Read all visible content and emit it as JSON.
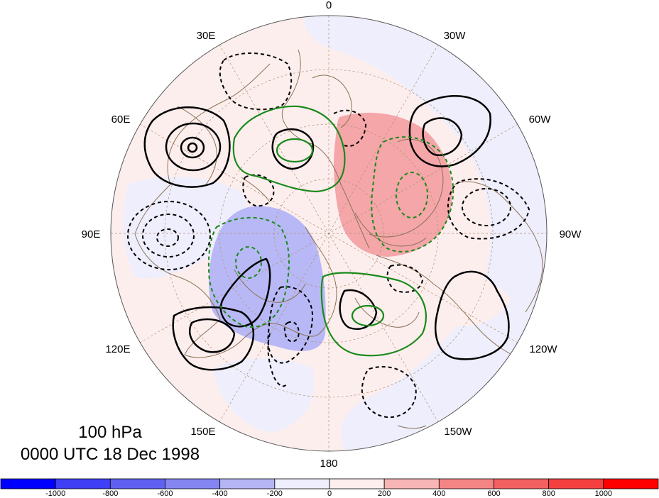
{
  "map": {
    "projection": "north-polar-stereographic",
    "longitude_labels": {
      "top": "0",
      "lon_30e": "30E",
      "lon_30w": "30W",
      "lon_60e": "60E",
      "lon_60w": "60W",
      "lon_90e": "90E",
      "lon_90w": "90W",
      "lon_120e": "120E",
      "lon_120w": "120W",
      "lon_150e": "150E",
      "lon_150w": "150W",
      "bottom": "180"
    },
    "colors": {
      "positive_shading": "#f4a0a4",
      "negative_shading": "#b5b5f5",
      "weak_positive": "#fdeeee",
      "weak_negative": "#eeeefc",
      "contour_black": "#000000",
      "contour_green": "#1a8a1a",
      "coastline": "#8b7355",
      "graticule": "#b09070"
    }
  },
  "caption": {
    "level": "100 hPa",
    "time": "0000 UTC 18 Dec 1998"
  },
  "colorbar": {
    "ticks": [
      "-1000",
      "-800",
      "-600",
      "-400",
      "-200",
      "0",
      "200",
      "400",
      "600",
      "800",
      "1000"
    ],
    "colors": [
      "#0000ff",
      "#3f3ff5",
      "#6060f2",
      "#8585f2",
      "#b5b5f5",
      "#eeeefc",
      "#fdeeee",
      "#f7b5b5",
      "#f58585",
      "#f26060",
      "#f53f3f",
      "#ff0000"
    ]
  }
}
